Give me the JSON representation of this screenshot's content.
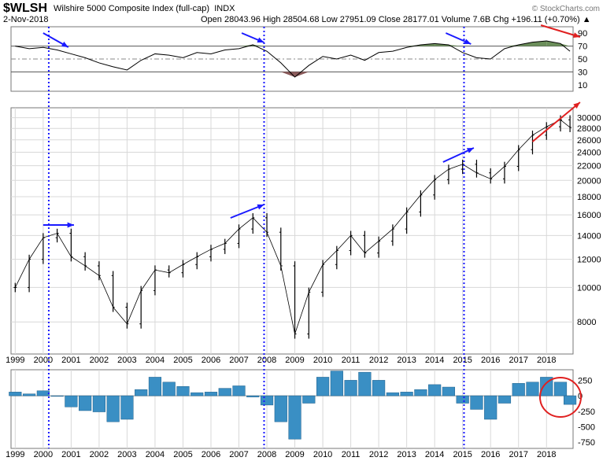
{
  "header": {
    "symbol": "$WLSH",
    "name": "Wilshire 5000 Composite Index (full-cap)",
    "exchange": "INDX",
    "date": "2-Nov-2018",
    "quote_line": "Open 28043.96  High 28504.68  Low 27951.09  Close 28177.01  Volume 7.6B  Chg +196.11 (+0.70%) ▲",
    "credit": "© StockCharts.com"
  },
  "colors": {
    "price_bar": "#000000",
    "oscillator_line": "#000000",
    "overbought_fill": "#6b8e5a",
    "oversold_fill": "#8b5a5a",
    "histogram": "#3a8fc4",
    "arrow_blue": "#1a1aff",
    "arrow_red": "#e02020",
    "vline": "#1a1aff"
  },
  "chart_data": [
    {
      "type": "line",
      "panel": "oscillator",
      "y_ticks": [
        "90",
        "70",
        "50",
        "30",
        "10"
      ],
      "ylim": [
        0,
        100
      ],
      "reference_lines": [
        70,
        50,
        30
      ],
      "x": [
        1999.0,
        1999.5,
        2000.0,
        2000.5,
        2001.0,
        2001.5,
        2002.0,
        2002.5,
        2003.0,
        2003.5,
        2004.0,
        2004.5,
        2005.0,
        2005.5,
        2006.0,
        2006.5,
        2007.0,
        2007.5,
        2008.0,
        2008.5,
        2009.0,
        2009.5,
        2010.0,
        2010.5,
        2011.0,
        2011.5,
        2012.0,
        2012.5,
        2013.0,
        2013.5,
        2014.0,
        2014.5,
        2015.0,
        2015.5,
        2016.0,
        2016.5,
        2017.0,
        2017.5,
        2018.0,
        2018.5,
        2018.84
      ],
      "values": [
        70,
        66,
        68,
        64,
        58,
        52,
        44,
        38,
        33,
        48,
        58,
        56,
        52,
        60,
        58,
        64,
        66,
        72,
        62,
        44,
        22,
        40,
        54,
        50,
        56,
        48,
        60,
        62,
        68,
        72,
        74,
        72,
        60,
        52,
        50,
        66,
        72,
        76,
        78,
        74,
        62
      ]
    },
    {
      "type": "bar",
      "panel": "price",
      "subtype": "ohlc",
      "y_ticks": [
        "30000",
        "28000",
        "26000",
        "24000",
        "22000",
        "20000",
        "18000",
        "16000",
        "14000",
        "12000",
        "10000",
        "8000"
      ],
      "y_scale": "log",
      "ylim": [
        6500,
        32000
      ],
      "x_ticks": [
        "1999",
        "2000",
        "2001",
        "2002",
        "2003",
        "2004",
        "2005",
        "2006",
        "2007",
        "2008",
        "2009",
        "2010",
        "2011",
        "2012",
        "2013",
        "2014",
        "2015",
        "2016",
        "2017",
        "2018"
      ],
      "x": [
        1999.0,
        1999.5,
        2000.0,
        2000.5,
        2001.0,
        2001.5,
        2002.0,
        2002.5,
        2003.0,
        2003.5,
        2004.0,
        2004.5,
        2005.0,
        2005.5,
        2006.0,
        2006.5,
        2007.0,
        2007.5,
        2008.0,
        2008.5,
        2009.0,
        2009.5,
        2010.0,
        2010.5,
        2011.0,
        2011.5,
        2012.0,
        2012.5,
        2013.0,
        2013.5,
        2014.0,
        2014.5,
        2015.0,
        2015.5,
        2016.0,
        2016.5,
        2017.0,
        2017.5,
        2018.0,
        2018.5,
        2018.84
      ],
      "values": [
        10000,
        12000,
        13800,
        14200,
        12200,
        11500,
        10800,
        8800,
        7900,
        9800,
        11200,
        11000,
        11600,
        12200,
        12800,
        13300,
        14600,
        15700,
        14300,
        11500,
        7400,
        9700,
        11600,
        12700,
        14000,
        12500,
        13500,
        14600,
        16300,
        18200,
        20100,
        21500,
        22200,
        21000,
        20200,
        21900,
        24400,
        26800,
        28300,
        29600,
        28177
      ]
    },
    {
      "type": "bar",
      "panel": "histogram",
      "y_ticks": [
        "250",
        "0",
        "-250",
        "-500",
        "-750"
      ],
      "ylim": [
        -850,
        420
      ],
      "x": [
        1999.0,
        1999.5,
        2000.0,
        2000.5,
        2001.0,
        2001.5,
        2002.0,
        2002.5,
        2003.0,
        2003.5,
        2004.0,
        2004.5,
        2005.0,
        2005.5,
        2006.0,
        2006.5,
        2007.0,
        2007.5,
        2008.0,
        2008.5,
        2009.0,
        2009.5,
        2010.0,
        2010.5,
        2011.0,
        2011.5,
        2012.0,
        2012.5,
        2013.0,
        2013.5,
        2014.0,
        2014.5,
        2015.0,
        2015.5,
        2016.0,
        2016.5,
        2017.0,
        2017.5,
        2018.0,
        2018.5,
        2018.84
      ],
      "values": [
        60,
        30,
        80,
        -10,
        -180,
        -240,
        -260,
        -420,
        -380,
        100,
        300,
        220,
        150,
        50,
        60,
        120,
        160,
        -20,
        -150,
        -420,
        -700,
        -120,
        300,
        400,
        250,
        380,
        250,
        50,
        60,
        100,
        180,
        140,
        -120,
        -220,
        -380,
        -120,
        200,
        220,
        300,
        220,
        -140
      ]
    }
  ]
}
